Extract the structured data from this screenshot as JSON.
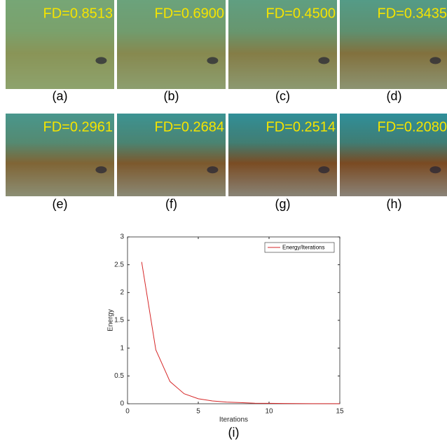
{
  "panels": [
    {
      "fd": "FD=0.8513",
      "caption": "(a)"
    },
    {
      "fd": "FD=0.6900",
      "caption": "(b)"
    },
    {
      "fd": "FD=0.4500",
      "caption": "(c)"
    },
    {
      "fd": "FD=0.3435",
      "caption": "(d)"
    },
    {
      "fd": "FD=0.2961",
      "caption": "(e)"
    },
    {
      "fd": "FD=0.2684",
      "caption": "(f)"
    },
    {
      "fd": "FD=0.2514",
      "caption": "(g)"
    },
    {
      "fd": "FD=0.2080",
      "caption": "(h)"
    }
  ],
  "chart_data": {
    "type": "line",
    "xlabel": "Iterations",
    "ylabel": "Energy",
    "caption": "(i)",
    "x": [
      1,
      2,
      3,
      4,
      5,
      6,
      7,
      8,
      9,
      10,
      11,
      12,
      13,
      14,
      15
    ],
    "series": [
      {
        "name": "Energy/Iterations",
        "color": "#d62728",
        "values": [
          2.55,
          0.97,
          0.4,
          0.18,
          0.09,
          0.05,
          0.03,
          0.02,
          0.01,
          0.008,
          0.005,
          0.003,
          0.002,
          0.001,
          0.001
        ]
      }
    ],
    "xlim": [
      0,
      15
    ],
    "ylim": [
      0,
      3
    ],
    "xticks": [
      0,
      5,
      10,
      15
    ],
    "yticks": [
      0,
      0.5,
      1,
      1.5,
      2,
      2.5,
      3
    ],
    "legend": "upper right"
  }
}
